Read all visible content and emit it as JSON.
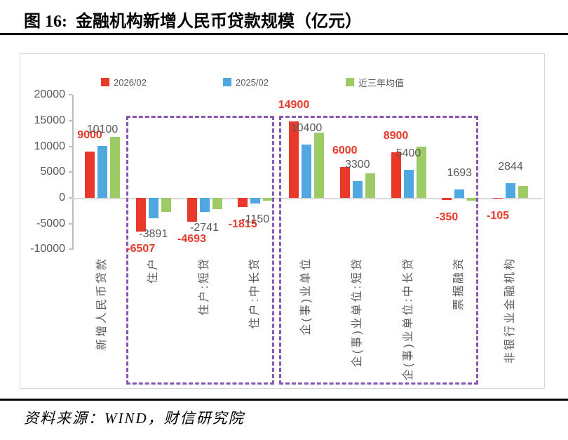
{
  "header": {
    "title": "图 16:  金融机构新增人民币贷款规模（亿元）"
  },
  "footer": {
    "source": "资料来源：WIND，财信研究院"
  },
  "chart_data": {
    "type": "bar",
    "title": "金融机构新增人民币贷款规模（亿元）",
    "categories": [
      "新增人民币贷款",
      "住户",
      "住户:短贷",
      "住户:中长贷",
      "企(事)业单位",
      "企(事)业单位:短贷",
      "企(事)业单位:中长贷",
      "票据融资",
      "非银行业金融机构"
    ],
    "series": [
      {
        "name": "2026/02",
        "color": "#E8392A",
        "values": [
          9000,
          -6507,
          -4693,
          -1815,
          14900,
          6000,
          8900,
          -350,
          -105
        ],
        "data_labels": [
          "9000",
          "-6507",
          "-4693",
          "-1815",
          "14900",
          "6000",
          "8900",
          "-350",
          "-105"
        ],
        "label_style": "red-bold"
      },
      {
        "name": "2025/02",
        "color": "#4FA8E0",
        "values": [
          10100,
          -3891,
          -2741,
          -1150,
          10400,
          3300,
          5400,
          1693,
          2844
        ],
        "data_labels": [
          "10100",
          "-3891",
          "-2741",
          "-1150",
          "10400",
          "3300",
          "5400",
          "1693",
          "2844"
        ],
        "label_style": "gray"
      },
      {
        "name": "近三年均值",
        "color": "#9DCC66",
        "values": [
          11800,
          -2700,
          -2200,
          -600,
          12700,
          4800,
          9900,
          -600,
          2300
        ],
        "data_labels": null,
        "label_style": "none"
      }
    ],
    "ylim": [
      -10000,
      20000
    ],
    "ytick_step": 5000,
    "yticks": [
      "20000",
      "15000",
      "10000",
      "5000",
      "0",
      "-5000",
      "-10000"
    ],
    "grid": false,
    "legend_position": "top",
    "highlight_boxes": [
      {
        "from_category": "住户",
        "to_category": "住户:中长贷"
      },
      {
        "from_category": "企(事)业单位",
        "to_category": "票据融资"
      }
    ],
    "colors": {
      "annotation_box": "#8757B2",
      "data_label_gray": "#595959",
      "axis_line": "#bfbfbf",
      "zero_line": "#d9d9d9",
      "card_border": "#d9d9d9"
    }
  }
}
